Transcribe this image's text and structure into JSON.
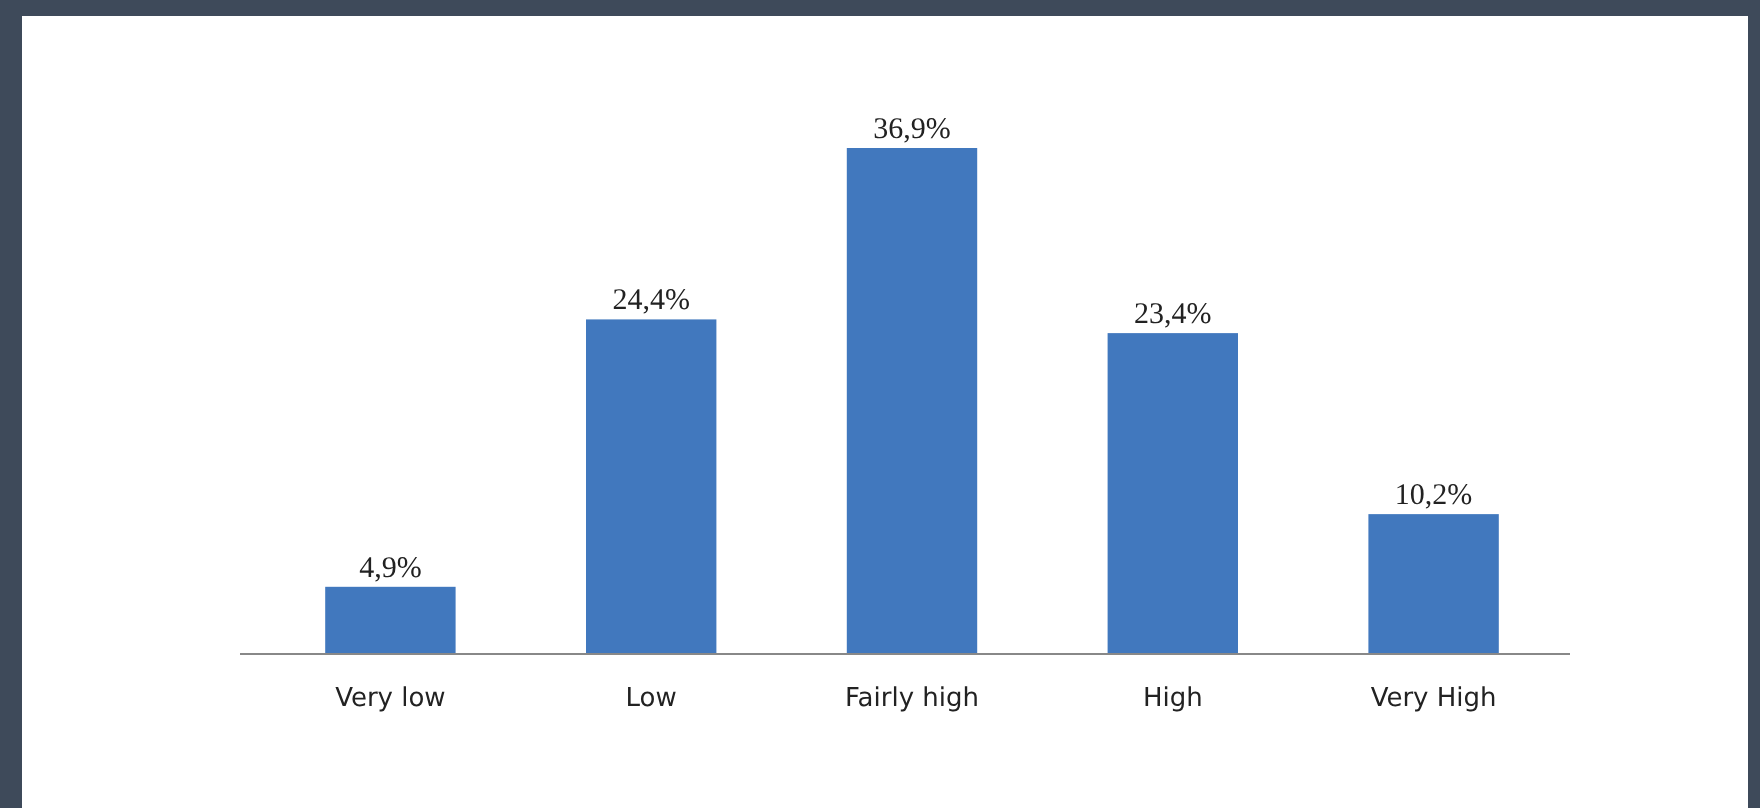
{
  "chart_data": {
    "type": "bar",
    "categories": [
      "Very low",
      "Low",
      "Fairly high",
      "High",
      "Very High"
    ],
    "values": [
      4.9,
      24.4,
      36.9,
      23.4,
      10.2
    ],
    "value_labels": [
      "4,9%",
      "24,4%",
      "36,9%",
      "23,4%",
      "10,2%"
    ],
    "color": "#4178be"
  }
}
